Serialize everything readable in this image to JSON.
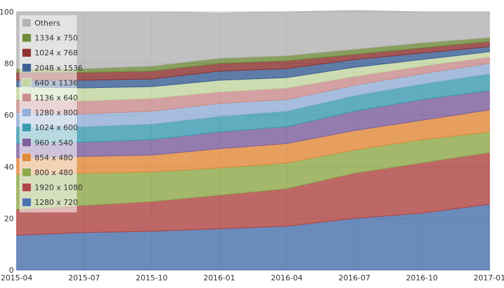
{
  "chart_data": {
    "type": "area",
    "stacked": true,
    "categories": [
      "2015-04",
      "2015-07",
      "2015-10",
      "2016-01",
      "2016-04",
      "2016-07",
      "2016-10",
      "2017-01"
    ],
    "ylim": [
      0,
      100
    ],
    "yticks": [
      0,
      20,
      40,
      60,
      80,
      100
    ],
    "grid": true,
    "legend_placement": "top-left",
    "series": [
      {
        "name": "1280 x 720",
        "color": "#4a72ab",
        "values": [
          13.5,
          14.5,
          15.0,
          16.0,
          17.0,
          20.0,
          22.0,
          25.5
        ]
      },
      {
        "name": "1920 x 1080",
        "color": "#b04545",
        "values": [
          10.0,
          10.5,
          11.5,
          13.0,
          14.5,
          17.5,
          19.5,
          20.0
        ]
      },
      {
        "name": "800 x 480",
        "color": "#8fa84a",
        "values": [
          13.5,
          12.5,
          11.5,
          10.5,
          10.0,
          9.0,
          9.0,
          8.0
        ]
      },
      {
        "name": "854 x 480",
        "color": "#e08a3c",
        "values": [
          6.5,
          6.5,
          6.5,
          7.5,
          7.5,
          7.5,
          7.5,
          8.5
        ]
      },
      {
        "name": "960 x 540",
        "color": "#7e5f9e",
        "values": [
          5.5,
          5.5,
          6.0,
          6.5,
          6.5,
          7.5,
          8.0,
          7.5
        ]
      },
      {
        "name": "1024 x 600",
        "color": "#3c9bb0",
        "values": [
          6.5,
          6.0,
          6.0,
          6.0,
          6.0,
          6.0,
          6.0,
          6.5
        ]
      },
      {
        "name": "1280 x 800",
        "color": "#94aed6",
        "values": [
          5.5,
          5.0,
          5.0,
          5.0,
          4.5,
          4.0,
          4.0,
          4.0
        ]
      },
      {
        "name": "1136 x 640",
        "color": "#c98c8c",
        "values": [
          5.0,
          5.0,
          5.0,
          4.5,
          4.5,
          3.5,
          3.0,
          2.5
        ]
      },
      {
        "name": "640 x 1136",
        "color": "#c2d6a0",
        "values": [
          5.0,
          5.0,
          4.5,
          4.5,
          4.0,
          3.5,
          2.5,
          2.0
        ]
      },
      {
        "name": "2048 x 1536",
        "color": "#3b5f95",
        "values": [
          2.5,
          3.0,
          3.0,
          3.5,
          3.5,
          3.0,
          2.5,
          2.0
        ]
      },
      {
        "name": "1024 x 768",
        "color": "#8e3232",
        "values": [
          3.0,
          3.0,
          3.0,
          3.0,
          3.0,
          2.0,
          2.0,
          2.0
        ]
      },
      {
        "name": "1334 x 750",
        "color": "#6f8a3a",
        "values": [
          1.5,
          1.5,
          2.0,
          2.0,
          2.0,
          2.0,
          2.0,
          1.5
        ]
      },
      {
        "name": "Others",
        "color": "#b3b3b3",
        "values": [
          22.0,
          22.0,
          21.0,
          17.5,
          17.0,
          15.0,
          12.0,
          10.0
        ]
      }
    ]
  }
}
